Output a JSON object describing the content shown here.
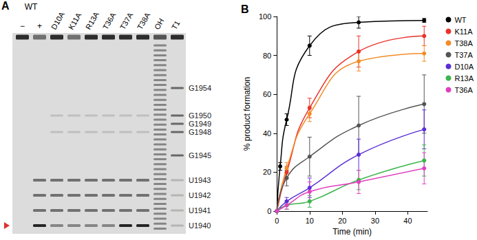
{
  "gel": {
    "panel_label": "A",
    "lanes": [
      {
        "label": "−",
        "group": "WT"
      },
      {
        "label": "+",
        "group": "WT"
      },
      {
        "label": "D10A"
      },
      {
        "label": "K11A"
      },
      {
        "label": "R13A"
      },
      {
        "label": "T36A"
      },
      {
        "label": "T37A"
      },
      {
        "label": "T38A"
      },
      {
        "label": "OH"
      },
      {
        "label": "T1"
      }
    ],
    "band_labels": [
      "G1954",
      "G1950",
      "G1949",
      "G1948",
      "G1945",
      "U1943",
      "U1942",
      "U1941",
      "U1940"
    ],
    "marked_band": "U1940"
  },
  "chart_data": {
    "type": "line",
    "panel_label": "B",
    "x_label": "Time (min)",
    "y_label": "% product formation",
    "xlim": [
      0,
      46
    ],
    "xticks": [
      0,
      10,
      20,
      30,
      40
    ],
    "ylim": [
      0,
      100
    ],
    "yticks": [
      0,
      20,
      40,
      60,
      80,
      100
    ],
    "grid": false,
    "legend": "right",
    "marker": "circle",
    "series": [
      {
        "name": "WT",
        "color": "#000000",
        "x": [
          0,
          1,
          3,
          10,
          25,
          45
        ],
        "values": [
          0,
          23,
          47,
          85,
          97,
          98
        ],
        "errors": [
          0,
          2,
          3,
          5,
          3,
          1
        ]
      },
      {
        "name": "K11A",
        "color": "#e8322a",
        "x": [
          0,
          3,
          10,
          25,
          45
        ],
        "values": [
          0,
          20,
          53,
          82,
          90
        ],
        "errors": [
          0,
          3,
          5,
          8,
          5
        ]
      },
      {
        "name": "T38A",
        "color": "#f28c28",
        "x": [
          0,
          3,
          10,
          25,
          45
        ],
        "values": [
          0,
          22,
          50,
          77,
          81
        ],
        "errors": [
          0,
          3,
          4,
          5,
          4
        ]
      },
      {
        "name": "T37A",
        "color": "#555555",
        "x": [
          0,
          3,
          10,
          25,
          45
        ],
        "values": [
          0,
          17,
          28,
          44,
          55
        ],
        "errors": [
          0,
          4,
          10,
          15,
          15
        ]
      },
      {
        "name": "D10A",
        "color": "#5b2fd6",
        "x": [
          0,
          3,
          10,
          25,
          45
        ],
        "values": [
          0,
          5,
          12,
          29,
          42
        ],
        "errors": [
          0,
          2,
          5,
          8,
          10
        ]
      },
      {
        "name": "R13A",
        "color": "#3cb44b",
        "x": [
          0,
          3,
          10,
          25,
          45
        ],
        "values": [
          0,
          3,
          5,
          16,
          26
        ],
        "errors": [
          0,
          2,
          3,
          5,
          8
        ]
      },
      {
        "name": "T36A",
        "color": "#e040c0",
        "x": [
          0,
          3,
          10,
          25,
          45
        ],
        "values": [
          0,
          3,
          10,
          15,
          22
        ],
        "errors": [
          0,
          2,
          5,
          6,
          8
        ]
      }
    ]
  }
}
